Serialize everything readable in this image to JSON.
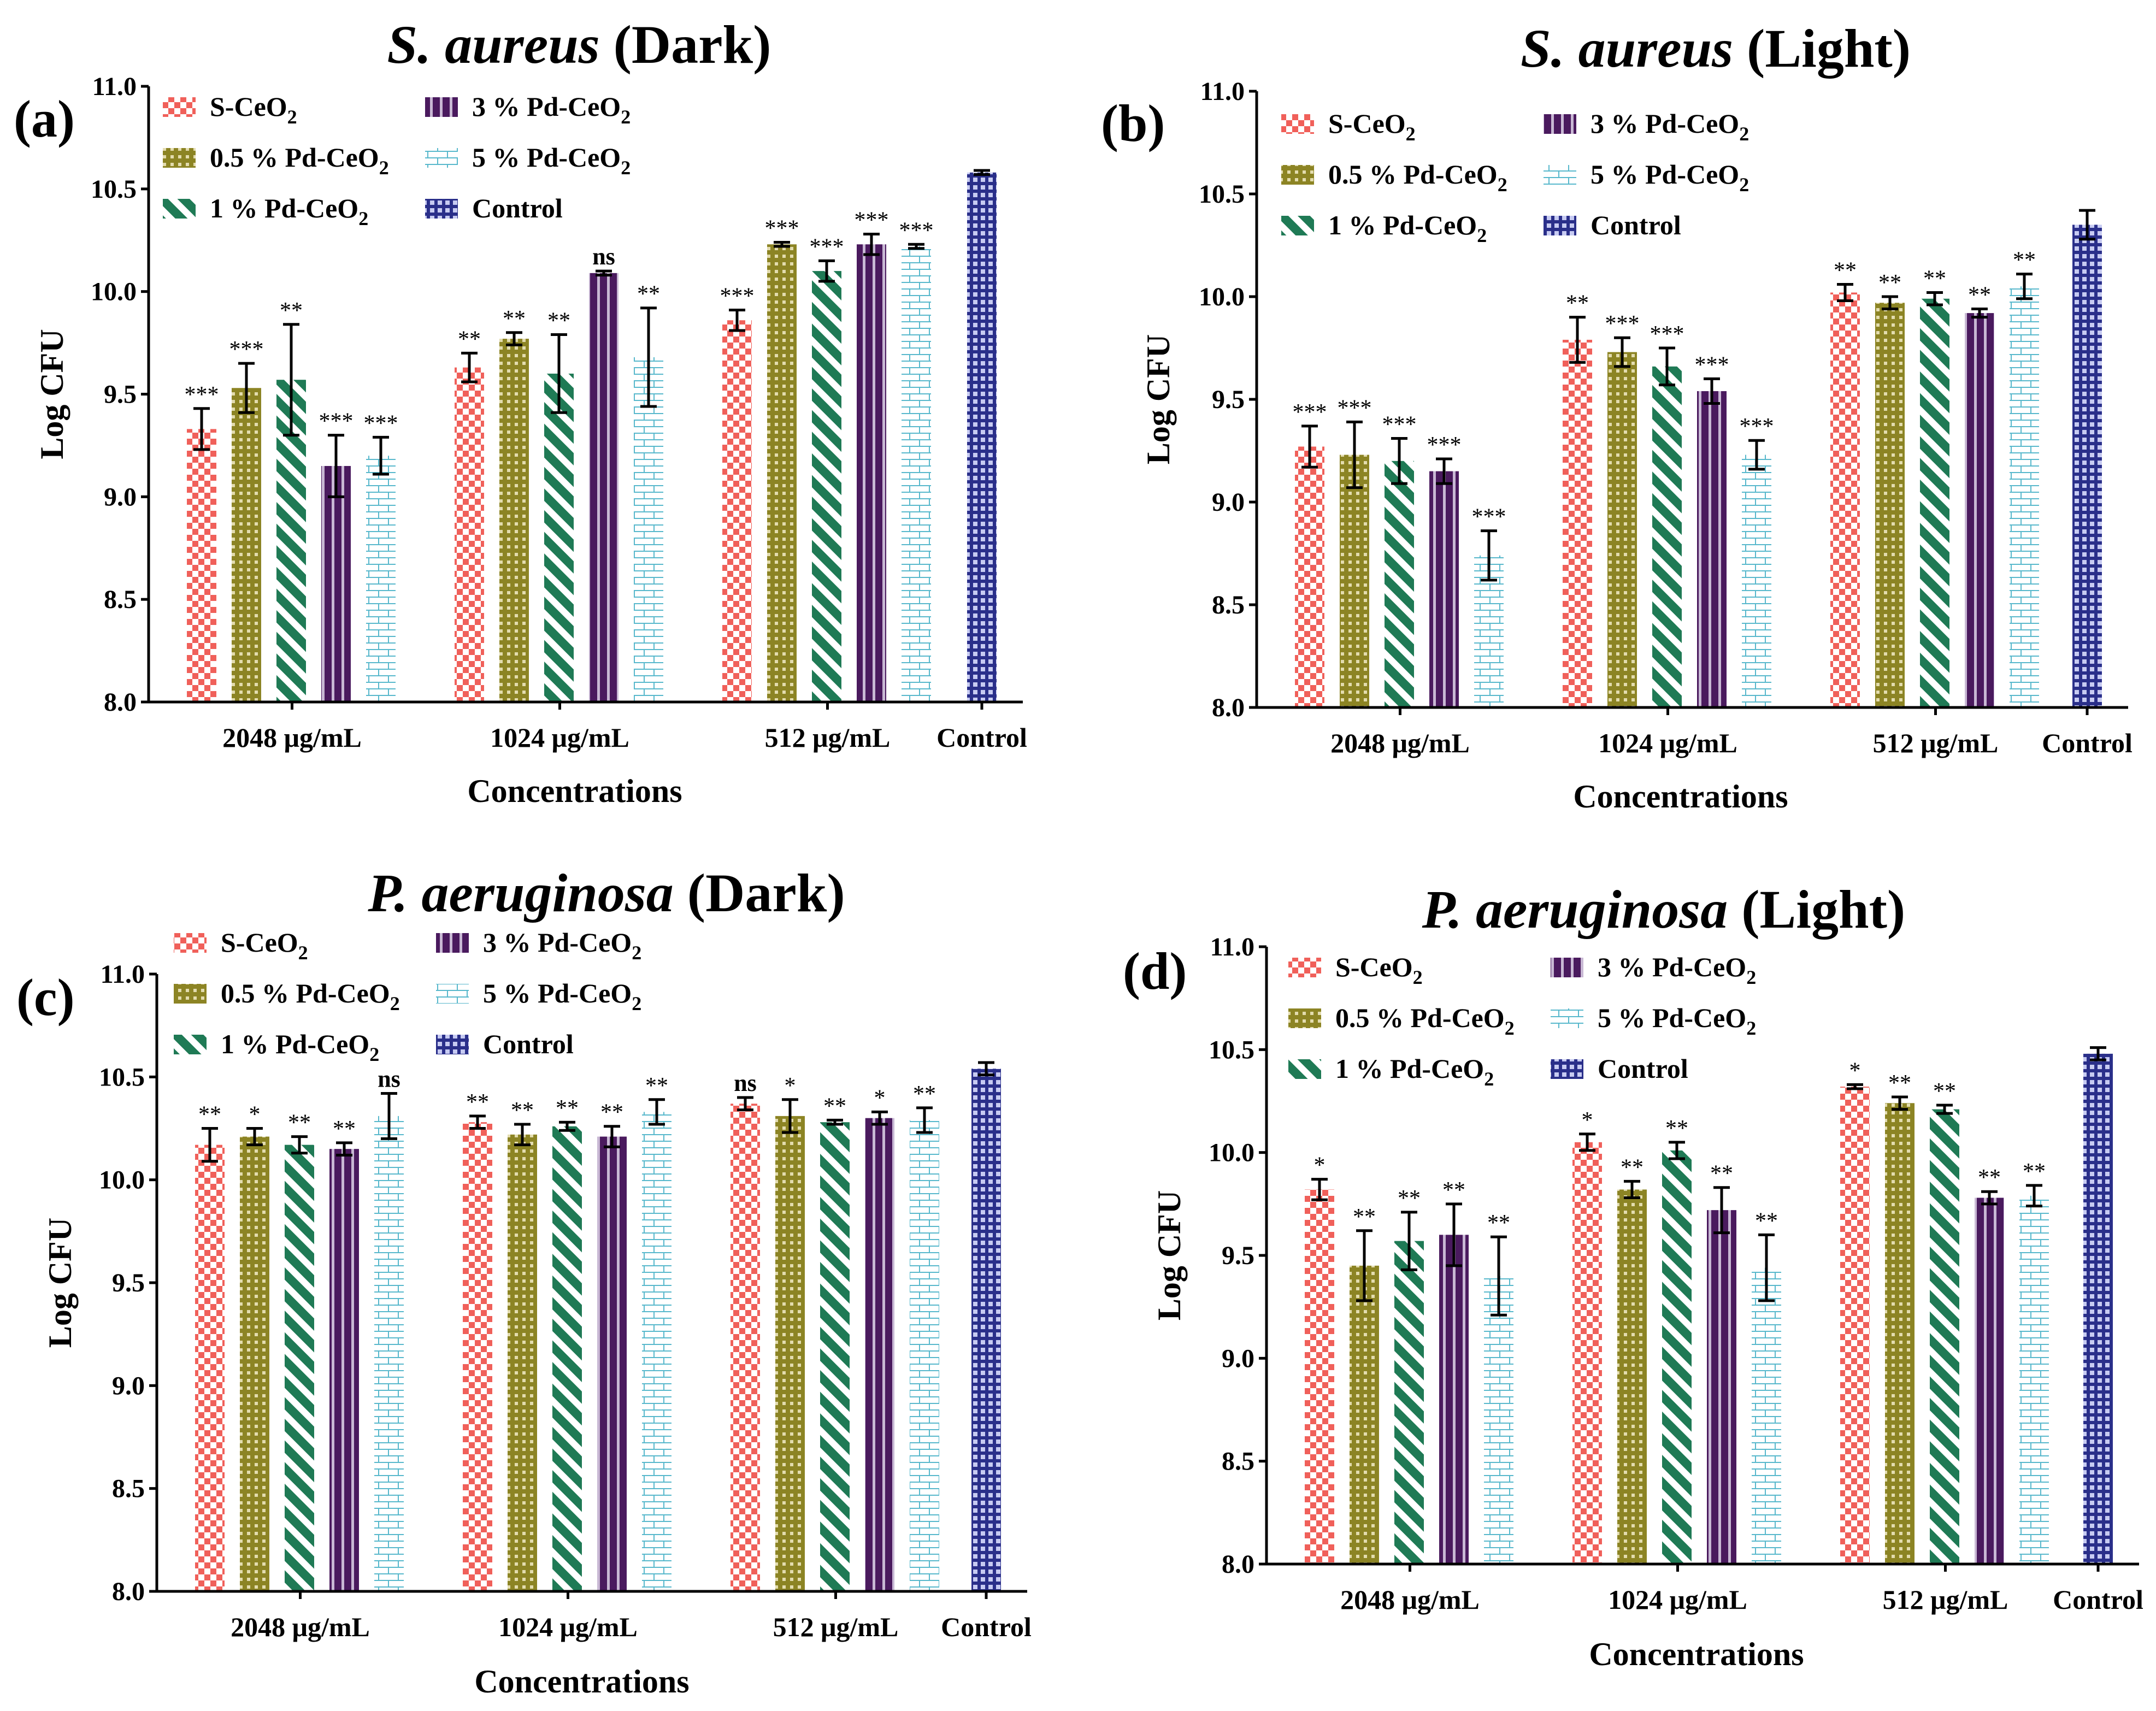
{
  "figure": {
    "colors": {
      "S-CeO2": "#f0605a",
      "0.5Pd": "#8c8424",
      "1Pd": "#1f7a55",
      "3Pd": "#4a1a5e",
      "5Pd": "#58b8cc",
      "Control": "#2a2f8a"
    },
    "legend_items": [
      {
        "key": "S-CeO2",
        "label": "S-CeO",
        "sub": "2"
      },
      {
        "key": "0.5Pd",
        "label": "0.5 % Pd-CeO",
        "sub": "2"
      },
      {
        "key": "1Pd",
        "label": "1 % Pd-CeO",
        "sub": "2"
      },
      {
        "key": "3Pd",
        "label": "3 % Pd-CeO",
        "sub": "2"
      },
      {
        "key": "5Pd",
        "label": "5 % Pd-CeO",
        "sub": "2"
      },
      {
        "key": "Control",
        "label": "Control",
        "sub": ""
      }
    ]
  },
  "chart_data": [
    {
      "type": "bar",
      "panel_label": "(a)",
      "title_italic": "S. aureus",
      "title_rest": " (Dark)",
      "xlabel": "Concentrations",
      "ylabel": "Log CFU",
      "ylim": [
        8.0,
        11.0
      ],
      "yticks": [
        "8.0",
        "8.5",
        "9.0",
        "9.5",
        "10.0",
        "10.5",
        "11.0"
      ],
      "legend_position": "top-left",
      "groups": [
        {
          "label": "2048 μg/mL",
          "values": [
            9.33,
            9.53,
            9.57,
            9.15,
            9.2
          ],
          "errors": [
            0.1,
            0.12,
            0.27,
            0.15,
            0.09
          ],
          "sig": [
            "***",
            "***",
            "**",
            "***",
            "***"
          ]
        },
        {
          "label": "1024 μg/mL",
          "values": [
            9.63,
            9.77,
            9.6,
            10.09,
            9.68
          ],
          "errors": [
            0.07,
            0.03,
            0.19,
            0.01,
            0.24
          ],
          "sig": [
            "**",
            "**",
            "**",
            "ns",
            "**"
          ]
        },
        {
          "label": "512 μg/mL",
          "values": [
            9.86,
            10.23,
            10.1,
            10.23,
            10.22
          ],
          "errors": [
            0.05,
            0.01,
            0.05,
            0.05,
            0.01
          ],
          "sig": [
            "***",
            "***",
            "***",
            "***",
            "***"
          ]
        }
      ],
      "control": {
        "label": "Control",
        "value": 10.58,
        "error": 0.01
      }
    },
    {
      "type": "bar",
      "panel_label": "(b)",
      "title_italic": "S. aureus",
      "title_rest": " (Light)",
      "xlabel": "Concentrations",
      "ylabel": "Log CFU",
      "ylim": [
        8.0,
        11.0
      ],
      "yticks": [
        "8.0",
        "8.5",
        "9.0",
        "9.5",
        "10.0",
        "10.5",
        "11.0"
      ],
      "legend_position": "top-left",
      "groups": [
        {
          "label": "2048 μg/mL",
          "values": [
            9.27,
            9.23,
            9.2,
            9.15,
            8.74
          ],
          "errors": [
            0.1,
            0.16,
            0.11,
            0.06,
            0.12
          ],
          "sig": [
            "***",
            "***",
            "***",
            "***",
            "***"
          ]
        },
        {
          "label": "1024 μg/mL",
          "values": [
            9.79,
            9.73,
            9.66,
            9.54,
            9.23
          ],
          "errors": [
            0.11,
            0.07,
            0.09,
            0.06,
            0.07
          ],
          "sig": [
            "**",
            "***",
            "***",
            "***",
            "***"
          ]
        },
        {
          "label": "512 μg/mL",
          "values": [
            10.02,
            9.97,
            9.99,
            9.92,
            10.05
          ],
          "errors": [
            0.04,
            0.03,
            0.03,
            0.02,
            0.06
          ],
          "sig": [
            "**",
            "**",
            "**",
            "**",
            "**"
          ]
        }
      ],
      "control": {
        "label": "Control",
        "value": 10.35,
        "error": 0.07
      }
    },
    {
      "type": "bar",
      "panel_label": "(c)",
      "title_italic": "P. aeruginosa",
      "title_rest": " (Dark)",
      "xlabel": "Concentrations",
      "ylabel": "Log CFU",
      "ylim": [
        8.0,
        11.0
      ],
      "yticks": [
        "8.0",
        "8.5",
        "9.0",
        "9.5",
        "10.0",
        "10.5",
        "11.0"
      ],
      "legend_position": "top-left",
      "groups": [
        {
          "label": "2048 μg/mL",
          "values": [
            10.17,
            10.21,
            10.17,
            10.15,
            10.31
          ],
          "errors": [
            0.08,
            0.04,
            0.04,
            0.03,
            0.11
          ],
          "sig": [
            "**",
            "*",
            "**",
            "**",
            "ns"
          ]
        },
        {
          "label": "1024 μg/mL",
          "values": [
            10.28,
            10.22,
            10.26,
            10.21,
            10.33
          ],
          "errors": [
            0.03,
            0.05,
            0.02,
            0.05,
            0.06
          ],
          "sig": [
            "**",
            "**",
            "**",
            "**",
            "**"
          ]
        },
        {
          "label": "512 μg/mL",
          "values": [
            10.37,
            10.31,
            10.28,
            10.3,
            10.29
          ],
          "errors": [
            0.03,
            0.08,
            0.01,
            0.03,
            0.06
          ],
          "sig": [
            "ns",
            "*",
            "**",
            "*",
            "**"
          ]
        }
      ],
      "control": {
        "label": "Control",
        "value": 10.54,
        "error": 0.03
      }
    },
    {
      "type": "bar",
      "panel_label": "(d)",
      "title_italic": "P. aeruginosa",
      "title_rest": " (Light)",
      "xlabel": "Concentrations",
      "ylabel": "Log CFU",
      "ylim": [
        8.0,
        11.0
      ],
      "yticks": [
        "8.0",
        "8.5",
        "9.0",
        "9.5",
        "10.0",
        "10.5",
        "11.0"
      ],
      "legend_position": "top-left",
      "groups": [
        {
          "label": "2048 μg/mL",
          "values": [
            9.82,
            9.45,
            9.57,
            9.6,
            9.4
          ],
          "errors": [
            0.05,
            0.17,
            0.14,
            0.15,
            0.19
          ],
          "sig": [
            "*",
            "**",
            "**",
            "**",
            "**"
          ]
        },
        {
          "label": "1024 μg/mL",
          "values": [
            10.05,
            9.82,
            10.01,
            9.72,
            9.44
          ],
          "errors": [
            0.04,
            0.04,
            0.04,
            0.11,
            0.16
          ],
          "sig": [
            "*",
            "**",
            "**",
            "**",
            "**"
          ]
        },
        {
          "label": "512 μg/mL",
          "values": [
            10.32,
            10.24,
            10.21,
            9.78,
            9.79
          ],
          "errors": [
            0.01,
            0.03,
            0.02,
            0.03,
            0.05
          ],
          "sig": [
            "*",
            "**",
            "**",
            "**",
            "**"
          ]
        }
      ],
      "control": {
        "label": "Control",
        "value": 10.48,
        "error": 0.03
      }
    }
  ]
}
